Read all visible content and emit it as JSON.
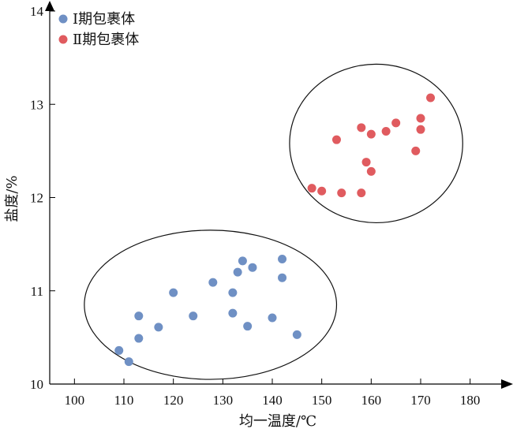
{
  "chart_data": {
    "type": "scatter",
    "xlabel": "均一温度/℃",
    "ylabel": "盐度/%",
    "xlim": [
      95,
      185
    ],
    "ylim": [
      10,
      14
    ],
    "x_ticks": [
      100,
      110,
      120,
      130,
      140,
      150,
      160,
      170,
      180
    ],
    "y_ticks": [
      10,
      11,
      12,
      13,
      14
    ],
    "legend_position": "top-left",
    "grid": false,
    "series": [
      {
        "name": "Ⅰ期包裹体",
        "color": "#6f90c4",
        "points": [
          [
            109,
            10.36
          ],
          [
            111,
            10.24
          ],
          [
            113,
            10.49
          ],
          [
            113,
            10.73
          ],
          [
            117,
            10.61
          ],
          [
            120,
            10.98
          ],
          [
            124,
            10.73
          ],
          [
            128,
            11.09
          ],
          [
            132,
            10.98
          ],
          [
            132,
            10.76
          ],
          [
            133,
            11.2
          ],
          [
            134,
            11.32
          ],
          [
            135,
            10.62
          ],
          [
            136,
            11.25
          ],
          [
            140,
            10.71
          ],
          [
            142,
            11.34
          ],
          [
            142,
            11.14
          ],
          [
            145,
            10.53
          ]
        ]
      },
      {
        "name": "Ⅱ期包裹体",
        "color": "#e05b5f",
        "points": [
          [
            148,
            12.1
          ],
          [
            150,
            12.07
          ],
          [
            153,
            12.62
          ],
          [
            154,
            12.05
          ],
          [
            158,
            12.05
          ],
          [
            158,
            12.75
          ],
          [
            159,
            12.38
          ],
          [
            160,
            12.28
          ],
          [
            160,
            12.68
          ],
          [
            163,
            12.71
          ],
          [
            165,
            12.8
          ],
          [
            169,
            12.5
          ],
          [
            170,
            12.73
          ],
          [
            170,
            12.85
          ],
          [
            172,
            13.07
          ]
        ]
      }
    ],
    "groupings": [
      {
        "shape": "ellipse",
        "cx": 127.5,
        "cy": 10.85,
        "rx": 25.5,
        "ry": 0.8
      },
      {
        "shape": "ellipse",
        "cx": 161,
        "cy": 12.58,
        "rx": 17.5,
        "ry": 0.85
      }
    ]
  }
}
